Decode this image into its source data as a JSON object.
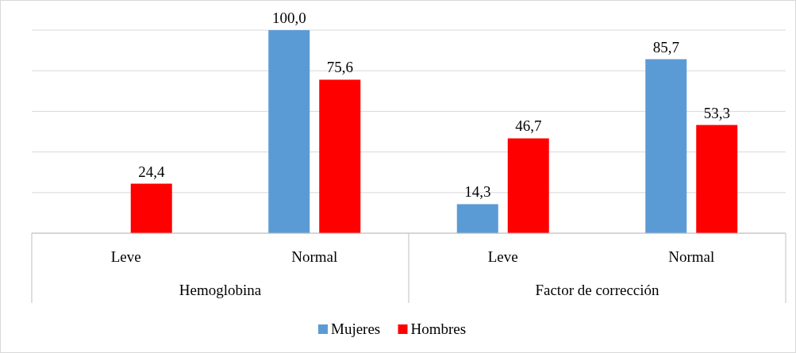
{
  "chart_data": {
    "type": "bar",
    "categories": [
      "Leve",
      "Normal",
      "Leve",
      "Normal"
    ],
    "series": [
      {
        "name": "Mujeres",
        "color": "#5b9bd5",
        "values": [
          null,
          100.0,
          14.3,
          85.7
        ],
        "value_labels": [
          null,
          "100,0",
          "14,3",
          "85,7"
        ]
      },
      {
        "name": "Hombres",
        "color": "#ff0000",
        "values": [
          24.4,
          75.6,
          46.7,
          53.3
        ],
        "value_labels": [
          "24,4",
          "75,6",
          "46,7",
          "53,3"
        ]
      }
    ],
    "annotations": [
      "Hemoglobina",
      "Factor de corrección"
    ],
    "grid": true,
    "legend": "bottom"
  }
}
